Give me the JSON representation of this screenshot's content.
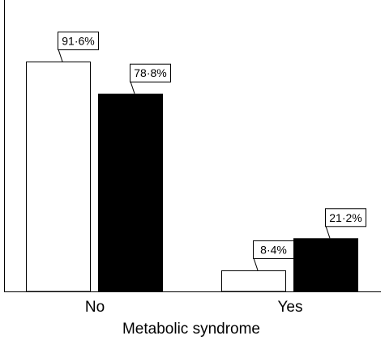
{
  "chart_data": {
    "type": "bar",
    "title": "",
    "xlabel": "Metabolic syndrome",
    "ylabel": "",
    "categories": [
      "No",
      "Yes"
    ],
    "ylim": [
      0,
      100
    ],
    "grid": false,
    "legend": "none",
    "series": [
      {
        "values": [
          91.6,
          8.4
        ],
        "labels": [
          "91·6%",
          "8·4%"
        ],
        "fill": "#ffffff",
        "stroke": "#000000"
      },
      {
        "values": [
          78.8,
          21.2
        ],
        "labels": [
          "78·8%",
          "21·2%"
        ],
        "fill": "#000000",
        "stroke": "#000000"
      }
    ]
  }
}
